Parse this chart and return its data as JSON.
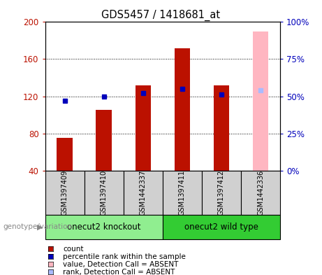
{
  "title": "GDS5457 / 1418681_at",
  "samples": [
    "GSM1397409",
    "GSM1397410",
    "GSM1442337",
    "GSM1397411",
    "GSM1397412",
    "GSM1442336"
  ],
  "count_values": [
    75,
    105,
    132,
    172,
    132,
    190
  ],
  "rank_values": [
    47,
    50,
    52,
    55,
    51,
    54
  ],
  "absent_flags": [
    false,
    false,
    false,
    false,
    false,
    true
  ],
  "groups": [
    {
      "label": "onecut2 knockout",
      "indices": [
        0,
        1,
        2
      ],
      "color": "#90EE90"
    },
    {
      "label": "onecut2 wild type",
      "indices": [
        3,
        4,
        5
      ],
      "color": "#33CC33"
    }
  ],
  "ylim_left": [
    40,
    200
  ],
  "ylim_right": [
    0,
    100
  ],
  "yticks_left": [
    40,
    80,
    120,
    160,
    200
  ],
  "yticks_right": [
    0,
    25,
    50,
    75,
    100
  ],
  "bar_color_present": "#BB1100",
  "bar_color_absent": "#FFB6C1",
  "rank_color_present": "#0000BB",
  "rank_color_absent": "#AABBFF",
  "bar_width": 0.4,
  "rank_marker_size": 5,
  "legend_items": [
    {
      "label": "count",
      "color": "#BB1100"
    },
    {
      "label": "percentile rank within the sample",
      "color": "#0000BB"
    },
    {
      "label": "value, Detection Call = ABSENT",
      "color": "#FFB6C1"
    },
    {
      "label": "rank, Detection Call = ABSENT",
      "color": "#AABBFF"
    }
  ],
  "left_label_color": "#BB1100",
  "right_label_color": "#0000BB",
  "sample_box_color": "#D0D0D0",
  "figure_width": 4.61,
  "figure_height": 3.93,
  "dpi": 100
}
